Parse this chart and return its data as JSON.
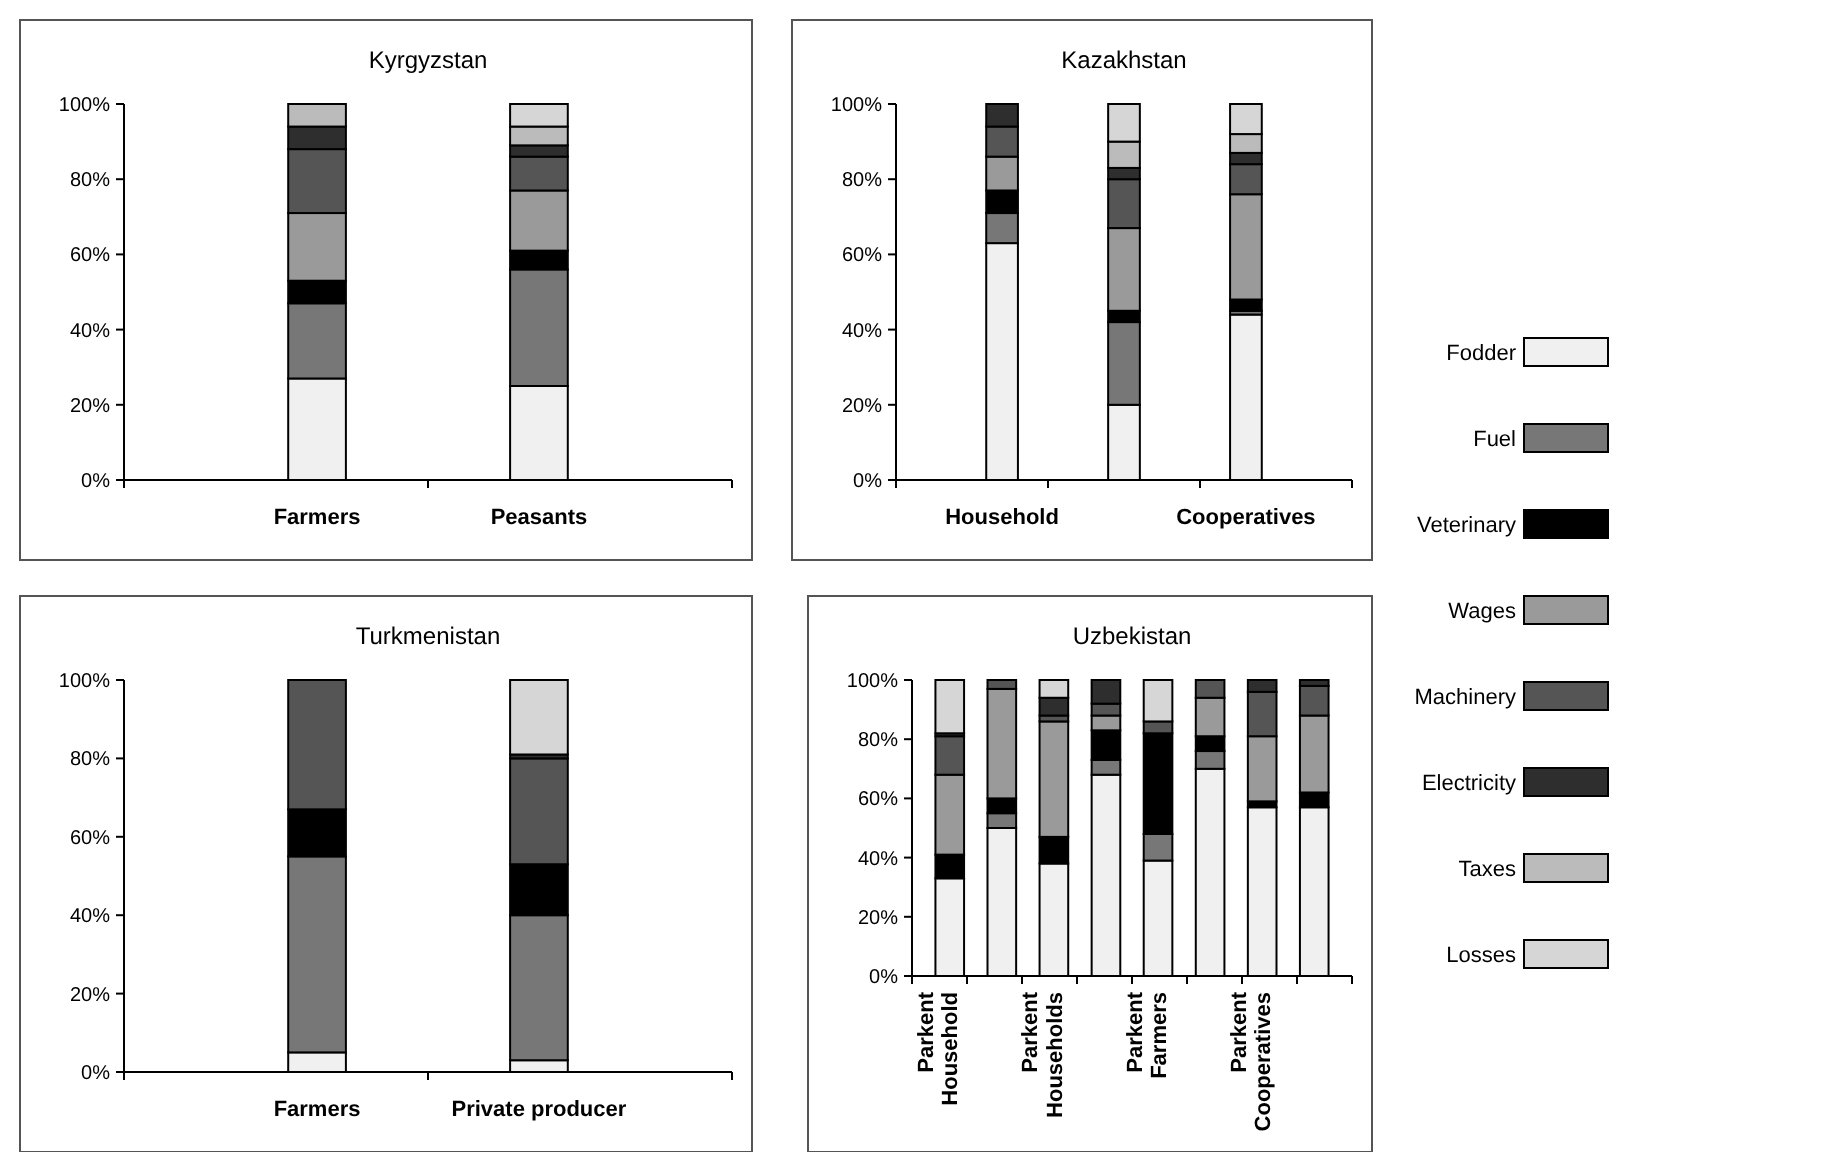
{
  "chart_data": [
    {
      "type": "bar",
      "title": "Kyrgyzstan",
      "stacked": true,
      "legend": "right",
      "categories": [
        "Farmers",
        "Peasants"
      ],
      "ylim": [
        0,
        100
      ],
      "yticks": [
        {
          "value": 0,
          "label": "0%"
        },
        {
          "value": 20,
          "label": "20%"
        },
        {
          "value": 40,
          "label": "40%"
        },
        {
          "value": 60,
          "label": "60%"
        },
        {
          "value": 80,
          "label": "80%"
        },
        {
          "value": 100,
          "label": "100%"
        }
      ],
      "series": [
        {
          "name": "Fodder",
          "color": "#f0f0f0",
          "values": [
            27,
            25
          ]
        },
        {
          "name": "Fuel",
          "color": "#777777",
          "values": [
            20,
            31
          ]
        },
        {
          "name": "Veterinary",
          "color": "#000000",
          "values": [
            6,
            5
          ]
        },
        {
          "name": "Wages",
          "color": "#9a9a9a",
          "values": [
            18,
            16
          ]
        },
        {
          "name": "Machinery",
          "color": "#555555",
          "values": [
            17,
            9
          ]
        },
        {
          "name": "Electricity",
          "color": "#2e2e2e",
          "values": [
            6,
            3
          ]
        },
        {
          "name": "Taxes",
          "color": "#bbbbbb",
          "values": [
            6,
            5
          ]
        },
        {
          "name": "Losses",
          "color": "#d6d6d6",
          "values": [
            0,
            6
          ]
        }
      ]
    },
    {
      "type": "bar",
      "title": "Kazakhstan",
      "stacked": true,
      "categories": [
        "Household",
        null,
        "Cooperatives"
      ],
      "ylim": [
        0,
        100
      ],
      "yticks": [
        {
          "value": 0,
          "label": "0%"
        },
        {
          "value": 20,
          "label": "20%"
        },
        {
          "value": 40,
          "label": "40%"
        },
        {
          "value": 60,
          "label": "60%"
        },
        {
          "value": 80,
          "label": "80%"
        },
        {
          "value": 100,
          "label": "100%"
        }
      ],
      "series": [
        {
          "color": "#f0f0f0",
          "values": [
            63,
            20,
            44
          ]
        },
        {
          "color": "#777777",
          "values": [
            8,
            22,
            1
          ]
        },
        {
          "color": "#000000",
          "values": [
            6,
            3,
            3
          ]
        },
        {
          "color": "#9a9a9a",
          "values": [
            9,
            22,
            28
          ]
        },
        {
          "color": "#555555",
          "values": [
            8,
            13,
            8
          ]
        },
        {
          "color": "#2e2e2e",
          "values": [
            6,
            3,
            3
          ]
        },
        {
          "color": "#bbbbbb",
          "values": [
            0,
            7,
            5
          ]
        },
        {
          "color": "#d6d6d6",
          "values": [
            0,
            10,
            8
          ]
        }
      ]
    },
    {
      "type": "bar",
      "title": "Turkmenistan",
      "stacked": true,
      "categories": [
        "Farmers",
        "Private producer"
      ],
      "ylim": [
        0,
        100
      ],
      "yticks": [
        {
          "value": 0,
          "label": "0%"
        },
        {
          "value": 20,
          "label": "20%"
        },
        {
          "value": 40,
          "label": "40%"
        },
        {
          "value": 60,
          "label": "60%"
        },
        {
          "value": 80,
          "label": "80%"
        },
        {
          "value": 100,
          "label": "100%"
        }
      ],
      "series": [
        {
          "color": "#f0f0f0",
          "values": [
            5,
            3
          ]
        },
        {
          "color": "#777777",
          "values": [
            50,
            37
          ]
        },
        {
          "color": "#000000",
          "values": [
            12,
            13
          ]
        },
        {
          "color": "#9a9a9a",
          "values": [
            0,
            0
          ]
        },
        {
          "color": "#555555",
          "values": [
            33,
            27
          ]
        },
        {
          "color": "#2e2e2e",
          "values": [
            0,
            1
          ]
        },
        {
          "color": "#bbbbbb",
          "values": [
            0,
            0
          ]
        },
        {
          "color": "#d6d6d6",
          "values": [
            0,
            19
          ]
        }
      ]
    },
    {
      "type": "bar",
      "title": "Uzbekistan",
      "stacked": true,
      "categories": [
        "Parkent Household",
        null,
        "Parkent Households",
        null,
        "Parkent Farmers",
        null,
        "Parkent Cooperatives",
        null
      ],
      "ylim": [
        0,
        100
      ],
      "yticks": [
        {
          "value": 0,
          "label": "0%"
        },
        {
          "value": 20,
          "label": "20%"
        },
        {
          "value": 40,
          "label": "40%"
        },
        {
          "value": 60,
          "label": "60%"
        },
        {
          "value": 80,
          "label": "80%"
        },
        {
          "value": 100,
          "label": "100%"
        }
      ],
      "series": [
        {
          "color": "#f0f0f0",
          "values": [
            33,
            50,
            38,
            68,
            39,
            70,
            57,
            57
          ]
        },
        {
          "color": "#777777",
          "values": [
            0,
            5,
            0,
            5,
            9,
            6,
            0,
            0
          ]
        },
        {
          "color": "#000000",
          "values": [
            8,
            5,
            9,
            10,
            34,
            5,
            2,
            5
          ]
        },
        {
          "color": "#9a9a9a",
          "values": [
            27,
            37,
            39,
            5,
            0,
            13,
            22,
            26
          ]
        },
        {
          "color": "#555555",
          "values": [
            13,
            3,
            2,
            4,
            4,
            6,
            15,
            10
          ]
        },
        {
          "color": "#2e2e2e",
          "values": [
            1,
            0,
            6,
            8,
            0,
            0,
            4,
            2
          ]
        },
        {
          "color": "#bbbbbb",
          "values": [
            0,
            0,
            0,
            0,
            0,
            0,
            0,
            0
          ]
        },
        {
          "color": "#d6d6d6",
          "values": [
            18,
            0,
            6,
            0,
            14,
            0,
            0,
            0
          ]
        }
      ]
    }
  ]
}
